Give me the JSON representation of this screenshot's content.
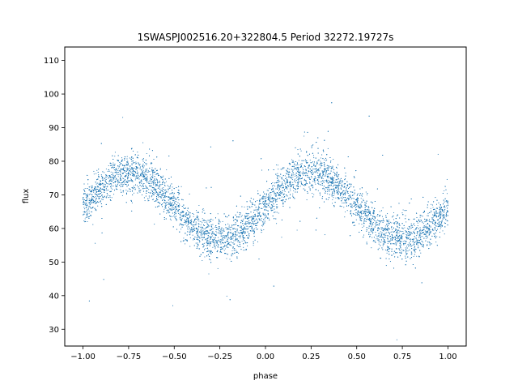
{
  "chart_data": {
    "type": "scatter",
    "title": "1SWASPJ002516.20+322804.5 Period 32272.19727s",
    "xlabel": "phase",
    "ylabel": "flux",
    "xlim": [
      -1.1,
      1.1
    ],
    "ylim": [
      25,
      114
    ],
    "x_ticks": [
      -1.0,
      -0.75,
      -0.5,
      -0.25,
      0.0,
      0.25,
      0.5,
      0.75,
      1.0
    ],
    "x_tick_labels": [
      "−1.00",
      "−0.75",
      "−0.50",
      "−0.25",
      "0.00",
      "0.25",
      "0.50",
      "0.75",
      "1.00"
    ],
    "y_ticks": [
      30,
      40,
      50,
      60,
      70,
      80,
      90,
      100,
      110
    ],
    "y_tick_labels": [
      "30",
      "40",
      "50",
      "60",
      "70",
      "80",
      "90",
      "100",
      "110"
    ],
    "grid": false,
    "marker_color": "#1f77b4",
    "phase_range": [
      -1.0,
      1.0
    ],
    "flux_model": {
      "mean": 66.5,
      "amplitude": 10.0,
      "max_phase": 0.25,
      "scatter": 3.0
    }
  }
}
